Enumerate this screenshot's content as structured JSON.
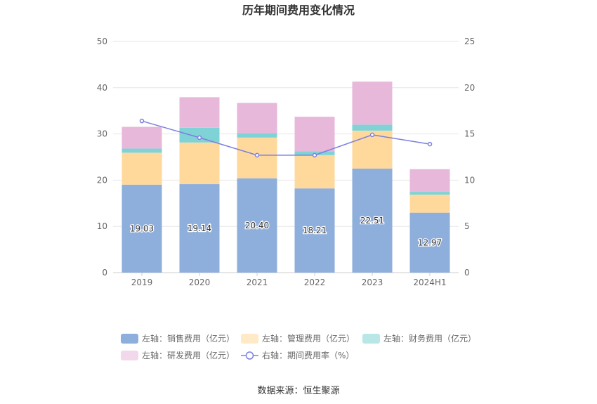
{
  "chart_data": {
    "type": "bar",
    "title": "历年期间费用变化情况",
    "categories": [
      "2019",
      "2020",
      "2021",
      "2022",
      "2023",
      "2024H1"
    ],
    "left_axis": {
      "min": 0,
      "max": 50,
      "ticks": [
        0,
        10,
        20,
        30,
        40,
        50
      ]
    },
    "right_axis": {
      "min": 0,
      "max": 25,
      "ticks": [
        0,
        5,
        10,
        15,
        20,
        25
      ]
    },
    "stacked": true,
    "series": [
      {
        "name": "左轴：销售费用（亿元）",
        "type": "bar",
        "axis": "left",
        "color": "#8eaedb",
        "values": [
          19.03,
          19.14,
          20.4,
          18.21,
          22.51,
          12.97
        ],
        "show_labels": true
      },
      {
        "name": "左轴：管理费用（亿元）",
        "type": "bar",
        "axis": "left",
        "color": "#ffd99b",
        "values": [
          6.9,
          9.0,
          8.8,
          7.2,
          8.2,
          3.9
        ]
      },
      {
        "name": "左轴：财务费用（亿元）",
        "type": "bar",
        "axis": "left",
        "color": "#7fd3d6",
        "values": [
          0.9,
          3.2,
          1.0,
          0.8,
          1.3,
          0.6
        ]
      },
      {
        "name": "左轴：研发费用（亿元）",
        "type": "bar",
        "axis": "left",
        "color": "#e7b8da",
        "values": [
          4.7,
          6.6,
          6.5,
          7.5,
          9.3,
          4.9
        ]
      },
      {
        "name": "右轴：期间费用率（%）",
        "type": "line",
        "axis": "right",
        "color": "#7b7fe0",
        "values": [
          16.4,
          14.6,
          12.7,
          12.7,
          14.9,
          13.9
        ]
      }
    ],
    "legend_position": "bottom",
    "grid": true
  },
  "source": "数据来源：恒生聚源"
}
